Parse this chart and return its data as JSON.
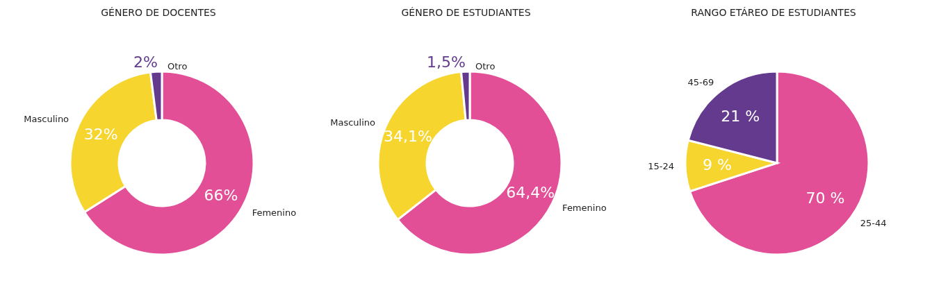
{
  "chart_data": [
    {
      "type": "donut",
      "title": "GÉNERO DE DOCENTES",
      "categories": [
        "Femenino",
        "Masculino",
        "Otro"
      ],
      "values": [
        66,
        32,
        2
      ],
      "colors": [
        "#e34f96",
        "#f7d52f",
        "#633a8e"
      ],
      "value_labels": [
        "66%",
        "32%",
        "2%"
      ]
    },
    {
      "type": "donut",
      "title": "GÉNERO DE ESTUDIANTES",
      "categories": [
        "Femenino",
        "Masculino",
        "Otro"
      ],
      "values": [
        64.4,
        34.1,
        1.5
      ],
      "colors": [
        "#e34f96",
        "#f7d52f",
        "#633a8e"
      ],
      "value_labels": [
        "64,4%",
        "34,1%",
        "1,5%"
      ]
    },
    {
      "type": "pie",
      "title": "RANGO ETÁREO DE ESTUDIANTES",
      "categories": [
        "25-44",
        "15-24",
        "45-69"
      ],
      "values": [
        70,
        9,
        21
      ],
      "colors": [
        "#e34f96",
        "#f7d52f",
        "#633a8e"
      ],
      "value_labels": [
        "70 %",
        "9 %",
        "21 %"
      ]
    }
  ]
}
